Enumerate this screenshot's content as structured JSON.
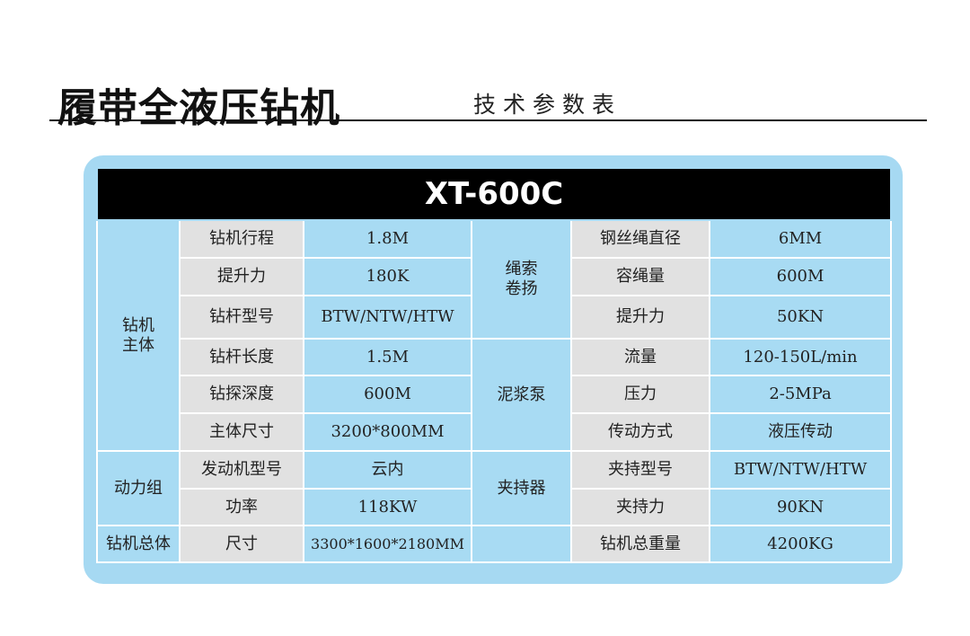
{
  "header": {
    "title": "履带全液压钻机",
    "subtitle": "技术参数表"
  },
  "table": {
    "model": "XT-600C",
    "left": {
      "groups": [
        "钻机主体",
        "动力组",
        "钻机总体"
      ],
      "rows": [
        {
          "k": "钻机行程",
          "v": "1.8M"
        },
        {
          "k": "提升力",
          "v": "180K"
        },
        {
          "k": "钻杆型号",
          "v": "BTW/NTW/HTW"
        },
        {
          "k": "钻杆长度",
          "v": "1.5M"
        },
        {
          "k": "钻探深度",
          "v": "600M"
        },
        {
          "k": "主体尺寸",
          "v": "3200*800MM"
        },
        {
          "k": "发动机型号",
          "v": "云内"
        },
        {
          "k": "功率",
          "v": "118KW"
        },
        {
          "k": "尺寸",
          "v": "3300*1600*2180MM"
        }
      ]
    },
    "right": {
      "groups": [
        "绳索卷扬",
        "泥浆泵",
        "夹持器",
        ""
      ],
      "rows": [
        {
          "k": "钢丝绳直径",
          "v": "6MM"
        },
        {
          "k": "容绳量",
          "v": "600M"
        },
        {
          "k": "提升力",
          "v": "50KN"
        },
        {
          "k": "流量",
          "v": "120-150L/min"
        },
        {
          "k": "压力",
          "v": "2-5MPa"
        },
        {
          "k": "传动方式",
          "v": "液压传动"
        },
        {
          "k": "夹持型号",
          "v": "BTW/NTW/HTW"
        },
        {
          "k": "夹持力",
          "v": "90KN"
        },
        {
          "k": "钻机总重量",
          "v": "4200KG"
        }
      ]
    }
  },
  "colors": {
    "cell_blue": "#a8dbf3",
    "cell_gray": "#e1e1e1",
    "header_bg": "#000000"
  }
}
